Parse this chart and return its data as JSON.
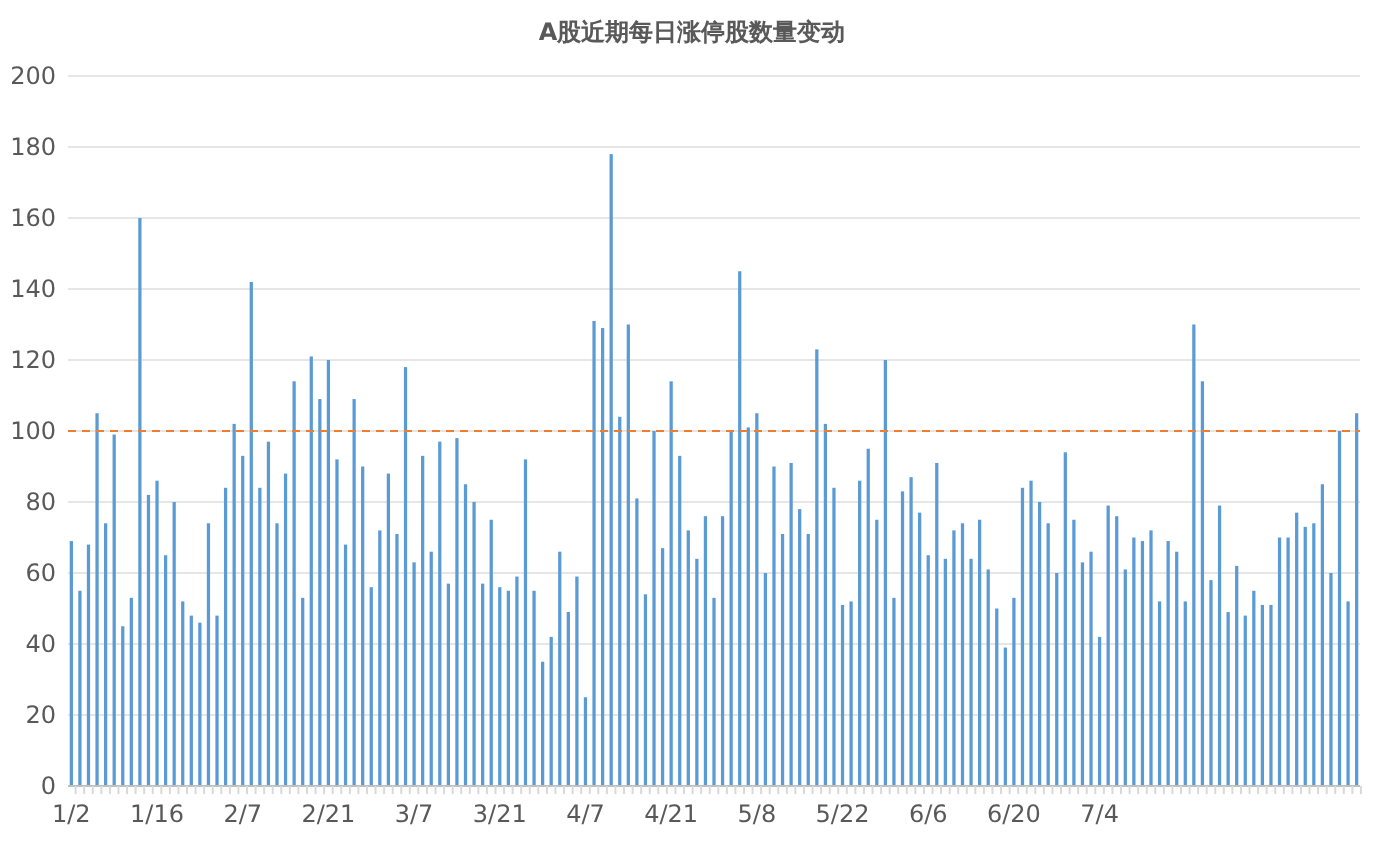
{
  "chart_data": {
    "type": "bar",
    "title": "A股近期每日涨停股数量变动",
    "categories": [
      "1/2",
      null,
      null,
      null,
      null,
      null,
      null,
      null,
      null,
      null,
      "1/16",
      null,
      null,
      null,
      null,
      null,
      null,
      null,
      null,
      null,
      "2/7",
      null,
      null,
      null,
      null,
      null,
      null,
      null,
      null,
      null,
      "2/21",
      null,
      null,
      null,
      null,
      null,
      null,
      null,
      null,
      null,
      "3/7",
      null,
      null,
      null,
      null,
      null,
      null,
      null,
      null,
      null,
      "3/21",
      null,
      null,
      null,
      null,
      null,
      null,
      null,
      null,
      null,
      "4/7",
      null,
      null,
      null,
      null,
      null,
      null,
      null,
      null,
      null,
      "4/21",
      null,
      null,
      null,
      null,
      null,
      null,
      null,
      null,
      null,
      "5/8",
      null,
      null,
      null,
      null,
      null,
      null,
      null,
      null,
      null,
      "5/22",
      null,
      null,
      null,
      null,
      null,
      null,
      null,
      null,
      null,
      "6/6",
      null,
      null,
      null,
      null,
      null,
      null,
      null,
      null,
      null,
      "6/20",
      null,
      null,
      null,
      null,
      null,
      null,
      null,
      null,
      null,
      "7/4",
      null,
      null,
      null,
      null,
      null,
      null,
      null,
      null,
      null,
      null,
      null,
      null,
      null,
      null,
      null,
      null,
      null,
      null,
      null,
      null,
      null,
      null,
      null,
      null,
      null,
      null,
      null,
      null,
      null,
      null
    ],
    "values": [
      69,
      55,
      68,
      105,
      74,
      99,
      45,
      53,
      160,
      82,
      86,
      65,
      80,
      52,
      48,
      46,
      74,
      48,
      84,
      102,
      93,
      142,
      84,
      97,
      74,
      88,
      114,
      53,
      121,
      109,
      120,
      92,
      68,
      109,
      90,
      56,
      72,
      88,
      71,
      118,
      63,
      93,
      66,
      97,
      57,
      98,
      85,
      80,
      57,
      75,
      56,
      55,
      59,
      92,
      55,
      35,
      42,
      66,
      49,
      59,
      25,
      131,
      129,
      178,
      104,
      130,
      81,
      54,
      100,
      67,
      114,
      93,
      72,
      64,
      76,
      53,
      76,
      100,
      145,
      101,
      105,
      60,
      90,
      71,
      91,
      78,
      71,
      123,
      102,
      84,
      51,
      52,
      86,
      95,
      75,
      120,
      53,
      83,
      87,
      77,
      65,
      91,
      64,
      72,
      74,
      64,
      75,
      61,
      50,
      39,
      53,
      84,
      86,
      80,
      74,
      60,
      94,
      75,
      63,
      66,
      42,
      79,
      76,
      61,
      70,
      69,
      72,
      52,
      69,
      66,
      52,
      130,
      114,
      58,
      79,
      49,
      62,
      48,
      55,
      51,
      51,
      70,
      70,
      77,
      73,
      74,
      85,
      60,
      100,
      52,
      105
    ],
    "color": "#5b9bd5",
    "ylim": [
      0,
      200
    ],
    "yticks": [
      0,
      20,
      40,
      60,
      80,
      100,
      120,
      140,
      160,
      180,
      200
    ],
    "grid": "y",
    "ref_lines": [
      {
        "axis": "y",
        "value": 100,
        "color": "#ed7d31",
        "line_style": "dashed"
      }
    ]
  }
}
